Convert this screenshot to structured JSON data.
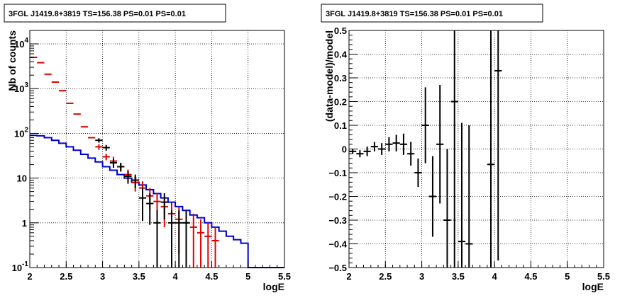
{
  "chart_data": [
    {
      "type": "histogram",
      "title": "3FGL J1419.8+3819 TS=156.38 PS=0.01 PS=0.01",
      "xlabel": "logE",
      "ylabel": "Nb of counts",
      "xlim": [
        2,
        5.5
      ],
      "ylim": [
        0.1,
        20000
      ],
      "yscale": "log",
      "grid": true,
      "x_ticks": [
        "2",
        "2.5",
        "3",
        "3.5",
        "4",
        "4.5",
        "5",
        "5.5"
      ],
      "y_ticks": [
        {
          "base": "10",
          "exp": "-1",
          "value": 0.1
        },
        {
          "base": "1",
          "exp": "",
          "value": 1
        },
        {
          "base": "10",
          "exp": "",
          "value": 10
        },
        {
          "base": "10",
          "exp": "2",
          "value": 100
        },
        {
          "base": "10",
          "exp": "3",
          "value": 1000
        },
        {
          "base": "10",
          "exp": "4",
          "value": 10000
        }
      ],
      "bin_width": 0.1,
      "series": [
        {
          "role": "model",
          "color": "#0000cc",
          "style": "step",
          "x_start": 2.0,
          "values": [
            90,
            88,
            80,
            70,
            60,
            50,
            42,
            34,
            28,
            23,
            18,
            15,
            12,
            10,
            8,
            7,
            5.5,
            4.5,
            3.6,
            2.9,
            2.3,
            1.9,
            1.5,
            1.3,
            1,
            0.8,
            0.65,
            0.5,
            0.42,
            0.35,
            0.1,
            0.1,
            0.1,
            0.1,
            0.1
          ]
        },
        {
          "role": "predicted",
          "color": "#dd0000",
          "style": "points",
          "x": [
            2.05,
            2.15,
            2.25,
            2.35,
            2.45,
            2.55,
            2.65,
            2.75,
            2.85,
            2.95,
            3.05,
            3.15,
            3.25,
            3.35,
            3.45,
            3.55,
            3.65,
            3.75,
            3.85,
            3.95,
            4.05,
            4.15,
            4.25,
            4.35,
            4.45,
            4.55
          ],
          "y": [
            5000,
            3800,
            2100,
            1400,
            900,
            470,
            270,
            140,
            80,
            50,
            30,
            24,
            18,
            12,
            8,
            6,
            4,
            3,
            2.3,
            1.6,
            1.2,
            1.0,
            0.8,
            0.6,
            0.5,
            0.4
          ],
          "err_lo": [
            0,
            0,
            0,
            0,
            0,
            0,
            0,
            0,
            0,
            7,
            5,
            6,
            4,
            3.5,
            3,
            2.5,
            2,
            1.7,
            1.5,
            1.2,
            1.0,
            0.9,
            0.8,
            0.6,
            0.5,
            0.4
          ],
          "err_hi": [
            0,
            0,
            0,
            0,
            0,
            0,
            0,
            0,
            0,
            7,
            5,
            6,
            4,
            3.5,
            3,
            2.5,
            2,
            1.7,
            1.5,
            1.2,
            1.0,
            0.9,
            0.8,
            0.6,
            0.5,
            0.4
          ]
        },
        {
          "role": "data",
          "color": "#000000",
          "style": "points",
          "x": [
            2.95,
            3.05,
            3.15,
            3.25,
            3.35,
            3.45,
            3.55,
            3.65,
            3.75,
            3.85,
            3.95,
            4.05,
            4.15
          ],
          "y": [
            70,
            48,
            22,
            18,
            11,
            9,
            3.6,
            2.7,
            1,
            2.9,
            1,
            1,
            1
          ],
          "err_lo": [
            8,
            7,
            5,
            4,
            3.5,
            3,
            2.5,
            1.8,
            0.9,
            1.7,
            0.9,
            0.9,
            0.9
          ],
          "err_hi": [
            8,
            7,
            5,
            4,
            3.5,
            3,
            2.5,
            1.8,
            0.9,
            1.7,
            0.9,
            0.9,
            0.9
          ]
        }
      ]
    },
    {
      "type": "scatter",
      "title": "3FGL J1419.8+3819 TS=156.38 PS=0.01 PS=0.01",
      "xlabel": "logE",
      "ylabel": "(data-model)/model",
      "xlim": [
        2,
        5.5
      ],
      "ylim": [
        -0.5,
        0.5
      ],
      "grid": true,
      "x_ticks": [
        "2",
        "2.5",
        "3",
        "3.5",
        "4",
        "4.5",
        "5",
        "5.5"
      ],
      "y_ticks": [
        "−0.5",
        "−0.4",
        "−0.3",
        "−0.2",
        "−0.1",
        "0",
        "0.1",
        "0.2",
        "0.3",
        "0.4",
        "0.5"
      ],
      "bin_width": 0.1,
      "series": [
        {
          "role": "residuals",
          "color": "#000000",
          "x": [
            2.05,
            2.15,
            2.25,
            2.35,
            2.45,
            2.55,
            2.65,
            2.75,
            2.85,
            2.95,
            3.05,
            3.15,
            3.25,
            3.35,
            3.45,
            3.55,
            3.65,
            3.95,
            4.05
          ],
          "y": [
            -0.01,
            -0.02,
            -0.01,
            0.01,
            0.0,
            0.02,
            0.025,
            0.02,
            -0.02,
            -0.1,
            0.1,
            -0.2,
            0.02,
            -0.3,
            0.2,
            -0.39,
            -0.4,
            -0.065,
            0.33
          ],
          "err_lo": [
            0.01,
            0.015,
            0.02,
            0.02,
            0.025,
            0.03,
            0.035,
            0.045,
            0.05,
            0.06,
            0.16,
            0.17,
            0.25,
            0.3,
            0.8,
            0.5,
            0.5,
            0.8,
            0.8
          ],
          "err_hi": [
            0.01,
            0.015,
            0.02,
            0.02,
            0.025,
            0.03,
            0.035,
            0.045,
            0.05,
            0.06,
            0.16,
            0.17,
            0.25,
            0.3,
            0.8,
            0.5,
            0.5,
            0.8,
            0.8
          ]
        }
      ]
    }
  ]
}
